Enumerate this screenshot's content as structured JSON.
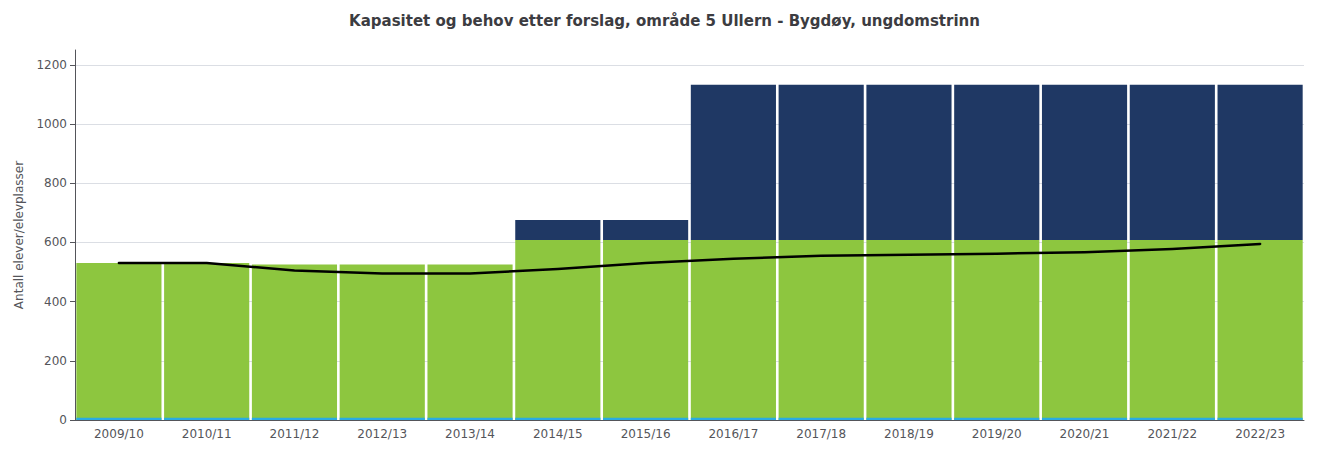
{
  "chart_data": {
    "type": "bar",
    "title": "Kapasitet og behov etter forslag, område 5 Ullern - Bygdøy, ungdomstrinn",
    "ylabel": "Antall elever/elevplasser",
    "categories": [
      "2009/10",
      "2010/11",
      "2011/12",
      "2012/13",
      "2013/14",
      "2014/15",
      "2015/16",
      "2016/17",
      "2017/18",
      "2018/19",
      "2019/20",
      "2020/21",
      "2021/22",
      "2022/23"
    ],
    "series": [
      {
        "type": "bar",
        "stacked": true,
        "color": "#8DC63F",
        "values": [
          530,
          530,
          525,
          525,
          525,
          608,
          608,
          608,
          608,
          608,
          608,
          608,
          608,
          608
        ]
      },
      {
        "type": "bar",
        "stacked": true,
        "color": "#1F3864",
        "values": [
          0,
          0,
          0,
          0,
          0,
          68,
          68,
          525,
          525,
          525,
          525,
          525,
          525,
          525
        ]
      },
      {
        "type": "bar",
        "stacked": false,
        "color": "#29ABE2",
        "values": [
          8,
          8,
          8,
          8,
          8,
          8,
          8,
          8,
          8,
          8,
          8,
          8,
          8,
          8
        ]
      },
      {
        "type": "line",
        "color": "#000000",
        "values": [
          530,
          530,
          505,
          495,
          495,
          510,
          530,
          545,
          555,
          558,
          562,
          567,
          578,
          595
        ]
      }
    ],
    "ylim": [
      0,
      1250
    ],
    "yticks": [
      0,
      200,
      400,
      600,
      800,
      1000,
      1200
    ],
    "grid": true
  }
}
